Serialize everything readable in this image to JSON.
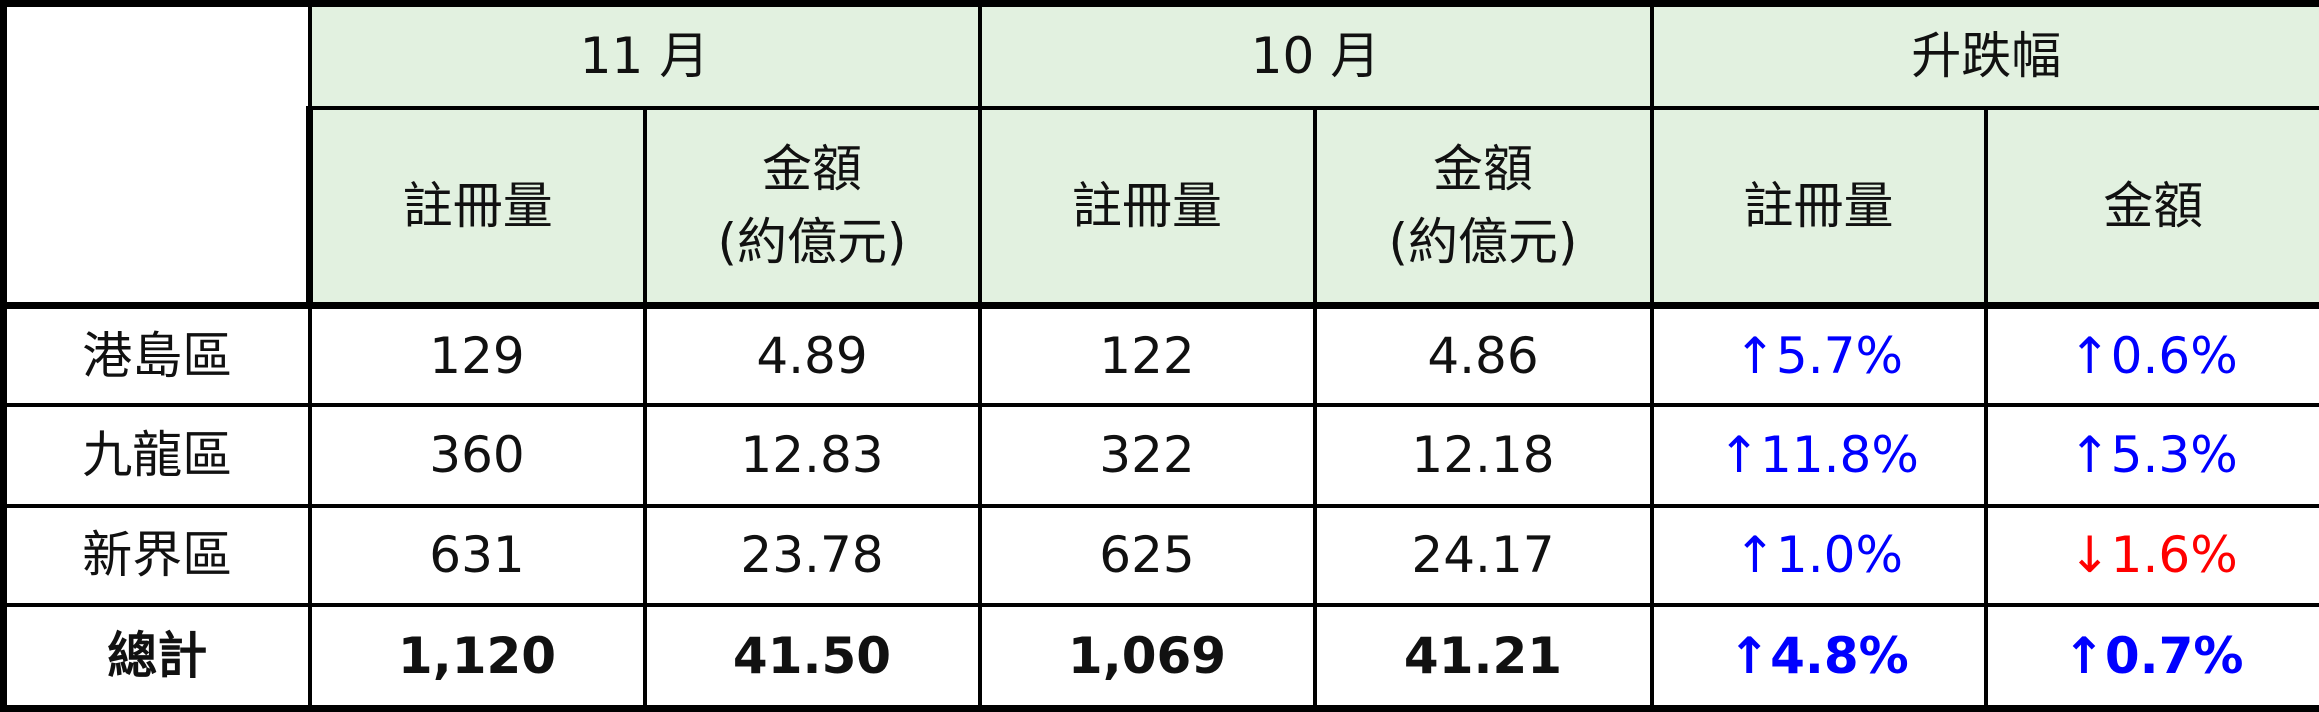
{
  "colors": {
    "header_bg": "#e2f1e0",
    "up": "#0000ff",
    "down": "#ff0000"
  },
  "header": {
    "groups": [
      "11 月",
      "10 月",
      "升跌幅"
    ],
    "sub": [
      {
        "line1": "註冊量",
        "line2": ""
      },
      {
        "line1": "金額",
        "line2": "(約億元)"
      },
      {
        "line1": "註冊量",
        "line2": ""
      },
      {
        "line1": "金額",
        "line2": "(約億元)"
      },
      {
        "line1": "註冊量",
        "line2": ""
      },
      {
        "line1": "金額",
        "line2": ""
      }
    ]
  },
  "rows": [
    {
      "region": "港島區",
      "nov_count": "129",
      "nov_amount": "4.89",
      "oct_count": "122",
      "oct_amount": "4.86",
      "chg_count": "↑5.7%",
      "chg_count_dir": "up",
      "chg_amount": "↑0.6%",
      "chg_amount_dir": "up"
    },
    {
      "region": "九龍區",
      "nov_count": "360",
      "nov_amount": "12.83",
      "oct_count": "322",
      "oct_amount": "12.18",
      "chg_count": "↑11.8%",
      "chg_count_dir": "up",
      "chg_amount": "↑5.3%",
      "chg_amount_dir": "up"
    },
    {
      "region": "新界區",
      "nov_count": "631",
      "nov_amount": "23.78",
      "oct_count": "625",
      "oct_amount": "24.17",
      "chg_count": "↑1.0%",
      "chg_count_dir": "up",
      "chg_amount": "↓1.6%",
      "chg_amount_dir": "down"
    },
    {
      "region": "總計",
      "nov_count": "1,120",
      "nov_amount": "41.50",
      "oct_count": "1,069",
      "oct_amount": "41.21",
      "chg_count": "↑4.8%",
      "chg_count_dir": "up",
      "chg_amount": "↑0.7%",
      "chg_amount_dir": "up"
    }
  ]
}
